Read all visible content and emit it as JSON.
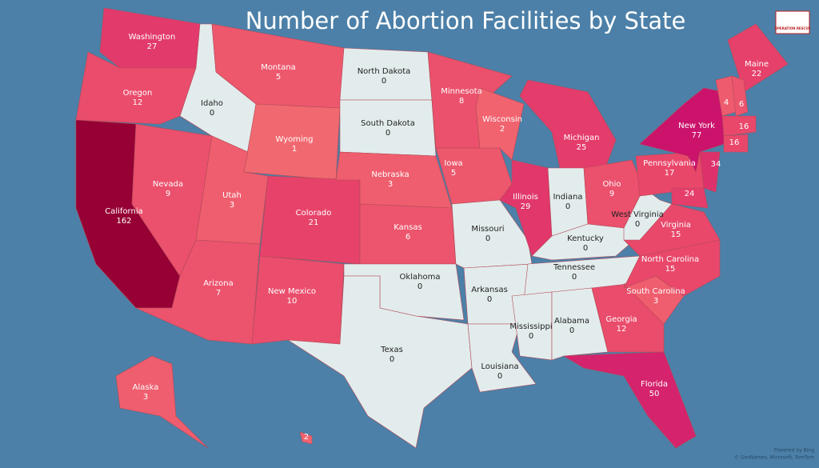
{
  "header": {
    "title": "Number of Abortion Facilities by State",
    "logo": "OPERATION RESCUE"
  },
  "states": [
    {
      "name": "Washington",
      "value": 27
    },
    {
      "name": "Oregon",
      "value": 12
    },
    {
      "name": "California",
      "value": 162
    },
    {
      "name": "Nevada",
      "value": 9
    },
    {
      "name": "Idaho",
      "value": 0
    },
    {
      "name": "Montana",
      "value": 5
    },
    {
      "name": "Wyoming",
      "value": 1
    },
    {
      "name": "Utah",
      "value": 3
    },
    {
      "name": "Arizona",
      "value": 7
    },
    {
      "name": "Colorado",
      "value": 21
    },
    {
      "name": "New Mexico",
      "value": 10
    },
    {
      "name": "North Dakota",
      "value": 0
    },
    {
      "name": "South Dakota",
      "value": 0
    },
    {
      "name": "Nebraska",
      "value": 3
    },
    {
      "name": "Kansas",
      "value": 6
    },
    {
      "name": "Oklahoma",
      "value": 0
    },
    {
      "name": "Texas",
      "value": 0
    },
    {
      "name": "Minnesota",
      "value": 8
    },
    {
      "name": "Iowa",
      "value": 5
    },
    {
      "name": "Missouri",
      "value": 0
    },
    {
      "name": "Arkansas",
      "value": 0
    },
    {
      "name": "Louisiana",
      "value": 0
    },
    {
      "name": "Wisconsin",
      "value": 2
    },
    {
      "name": "Illinois",
      "value": 29
    },
    {
      "name": "Michigan",
      "value": 25
    },
    {
      "name": "Indiana",
      "value": 0
    },
    {
      "name": "Ohio",
      "value": 9
    },
    {
      "name": "Kentucky",
      "value": 0
    },
    {
      "name": "Tennessee",
      "value": 0
    },
    {
      "name": "Mississippi",
      "value": 0
    },
    {
      "name": "Alabama",
      "value": 0
    },
    {
      "name": "Georgia",
      "value": 12
    },
    {
      "name": "Florida",
      "value": 50
    },
    {
      "name": "South Carolina",
      "value": 3
    },
    {
      "name": "North Carolina",
      "value": 15
    },
    {
      "name": "Virginia",
      "value": 15
    },
    {
      "name": "West Virginia",
      "value": 0
    },
    {
      "name": "Pennsylvania",
      "value": 17
    },
    {
      "name": "New York",
      "value": 77
    },
    {
      "name": "Maine",
      "value": 22
    },
    {
      "value": 4
    },
    {
      "value": 6
    },
    {
      "value": 16
    },
    {
      "value": 16
    },
    {
      "value": 34
    },
    {
      "value": 24
    },
    {
      "name": "Alaska",
      "value": 3
    },
    {
      "value": 2
    }
  ],
  "footer": [
    "Powered by Bing",
    "© GeoNames, Microsoft, TomTom"
  ]
}
